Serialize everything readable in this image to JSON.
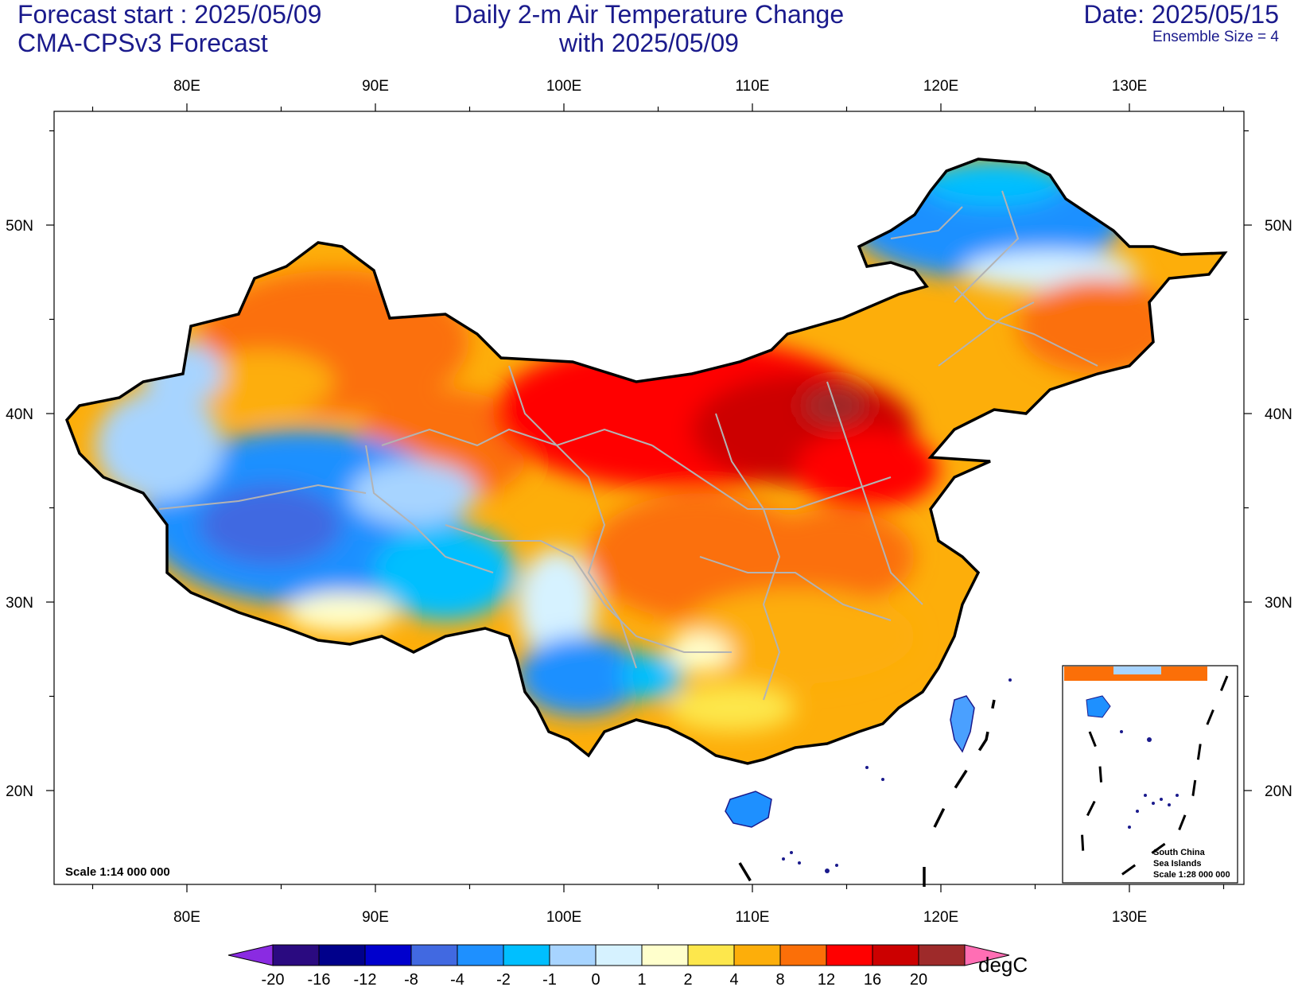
{
  "header": {
    "forecast_start": "Forecast start : 2025/05/09",
    "model": "CMA-CPSv3 Forecast",
    "title_line1": "Daily 2-m Air Temperature Change",
    "title_line2": "with 2025/05/09",
    "date": "Date: 2025/05/15",
    "ensemble": "Ensemble Size = 4"
  },
  "map": {
    "lon_ticks": [
      "80E",
      "90E",
      "100E",
      "110E",
      "120E",
      "130E"
    ],
    "lat_ticks": [
      "50N",
      "40N",
      "30N",
      "20N"
    ],
    "scale": "Scale 1:14 000 000",
    "inset": {
      "line1": "South China",
      "line2": "Sea Islands",
      "line3": "Scale 1:28 000 000"
    }
  },
  "colorbar": {
    "unit": "degC",
    "labels": [
      "-20",
      "-16",
      "-12",
      "-8",
      "-4",
      "-2",
      "-1",
      "0",
      "1",
      "2",
      "4",
      "8",
      "12",
      "16",
      "20"
    ],
    "colors": [
      "#2a0a80",
      "#00008b",
      "#0000cd",
      "#4169e1",
      "#1e90ff",
      "#00bfff",
      "#a7d4ff",
      "#d6f2ff",
      "#ffffcc",
      "#fde74c",
      "#fdae0a",
      "#fb6f08",
      "#ff0000",
      "#cc0000",
      "#9e2a2a"
    ],
    "under_color": "#8a2be2",
    "over_color": "#ff6eb4"
  }
}
